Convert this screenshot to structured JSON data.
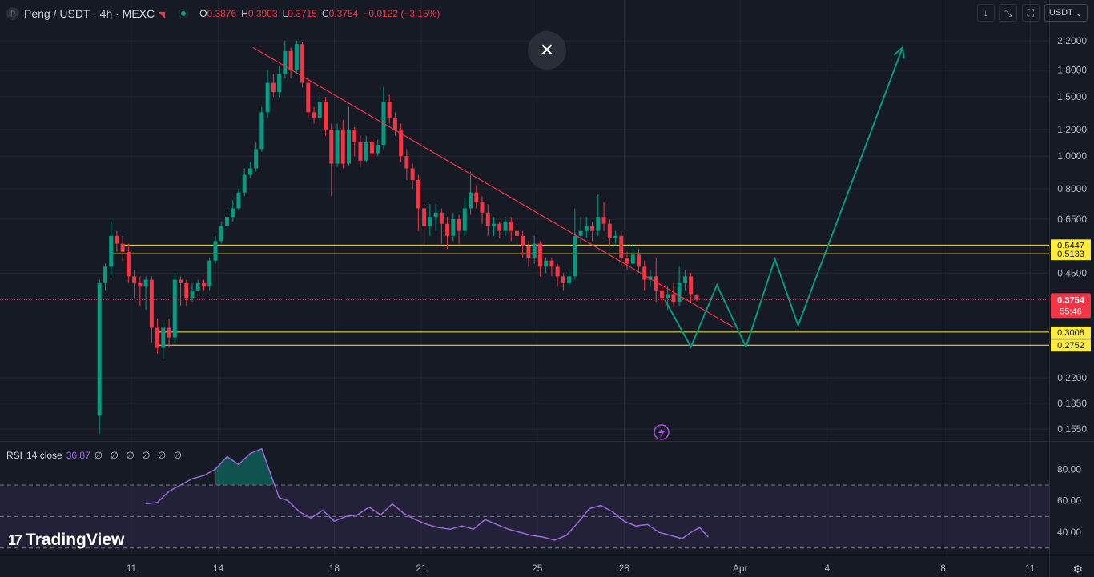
{
  "header": {
    "logo_letter": "P",
    "symbol": "Peng / USDT · 4h · MEXC",
    "ohlc": [
      {
        "k": "O",
        "v": "0.3876"
      },
      {
        "k": "H",
        "v": "0.3903"
      },
      {
        "k": "L",
        "v": "0.3715"
      },
      {
        "k": "C",
        "v": "0.3754"
      },
      {
        "k": "",
        "v": "−0.0122 (−3.15%)"
      }
    ]
  },
  "toolbar": {
    "close_symbol": "✕",
    "currency_label": "USDT"
  },
  "icons": {
    "close": "close-icon",
    "download": "arrow-down-icon",
    "collapse": "collapse-icon",
    "fullscreen": "fullscreen-icon",
    "settings": "gear-icon",
    "bolt": "lightning-icon"
  },
  "chart_data": {
    "type": "candlestick",
    "scale": "log",
    "y_tick_labels": [
      "2.2000",
      "1.8000",
      "1.5000",
      "1.2000",
      "1.0000",
      "0.8000",
      "0.6500",
      "0.4500",
      "0.2200",
      "0.1850",
      "0.1550"
    ],
    "x_tick_labels": [
      "11",
      "14",
      "18",
      "21",
      "25",
      "28",
      "Apr",
      "4",
      "8",
      "11"
    ],
    "last_price": {
      "value": "0.3754",
      "countdown": "55:46"
    },
    "horizontal_levels": [
      {
        "value": 0.5447,
        "label": "0.5447"
      },
      {
        "value": 0.5133,
        "label": "0.5133"
      },
      {
        "value": 0.3008,
        "label": "0.3008"
      },
      {
        "value": 0.2752,
        "label": "0.2752"
      }
    ],
    "trendline": {
      "from": {
        "t": 15.2,
        "p": 2.1
      },
      "to": {
        "t": 31.8,
        "p": 0.31
      }
    },
    "projection": [
      {
        "t": 29.4,
        "p": 0.375
      },
      {
        "t": 30.3,
        "p": 0.272
      },
      {
        "t": 31.2,
        "p": 0.415
      },
      {
        "t": 32.2,
        "p": 0.272
      },
      {
        "t": 33.2,
        "p": 0.495
      },
      {
        "t": 34.0,
        "p": 0.315
      },
      {
        "t": 37.6,
        "p": 2.1
      }
    ],
    "candles": [
      [
        9.9,
        0.17,
        0.42,
        0.15,
        0.43
      ],
      [
        10.1,
        0.42,
        0.47,
        0.4,
        0.48
      ],
      [
        10.3,
        0.47,
        0.58,
        0.44,
        0.64
      ],
      [
        10.5,
        0.58,
        0.55,
        0.52,
        0.6
      ],
      [
        10.7,
        0.55,
        0.52,
        0.49,
        0.58
      ],
      [
        10.9,
        0.52,
        0.44,
        0.42,
        0.55
      ],
      [
        11.1,
        0.44,
        0.42,
        0.38,
        0.46
      ],
      [
        11.3,
        0.42,
        0.41,
        0.36,
        0.44
      ],
      [
        11.5,
        0.41,
        0.43,
        0.35,
        0.44
      ],
      [
        11.7,
        0.43,
        0.31,
        0.28,
        0.44
      ],
      [
        11.9,
        0.31,
        0.27,
        0.26,
        0.33
      ],
      [
        12.1,
        0.27,
        0.31,
        0.25,
        0.32
      ],
      [
        12.3,
        0.31,
        0.29,
        0.27,
        0.33
      ],
      [
        12.5,
        0.29,
        0.43,
        0.28,
        0.45
      ],
      [
        12.7,
        0.43,
        0.42,
        0.36,
        0.44
      ],
      [
        12.9,
        0.42,
        0.38,
        0.36,
        0.43
      ],
      [
        13.1,
        0.38,
        0.4,
        0.37,
        0.42
      ],
      [
        13.3,
        0.4,
        0.42,
        0.4,
        0.43
      ],
      [
        13.5,
        0.42,
        0.41,
        0.4,
        0.43
      ],
      [
        13.7,
        0.41,
        0.49,
        0.4,
        0.5
      ],
      [
        13.9,
        0.49,
        0.56,
        0.48,
        0.58
      ],
      [
        14.1,
        0.56,
        0.62,
        0.55,
        0.64
      ],
      [
        14.3,
        0.62,
        0.66,
        0.61,
        0.69
      ],
      [
        14.5,
        0.66,
        0.7,
        0.64,
        0.74
      ],
      [
        14.7,
        0.7,
        0.78,
        0.69,
        0.8
      ],
      [
        14.9,
        0.78,
        0.88,
        0.76,
        0.92
      ],
      [
        15.1,
        0.88,
        0.92,
        0.86,
        0.96
      ],
      [
        15.3,
        0.92,
        1.05,
        0.9,
        1.1
      ],
      [
        15.5,
        1.05,
        1.35,
        1.03,
        1.4
      ],
      [
        15.7,
        1.35,
        1.65,
        1.3,
        1.8
      ],
      [
        15.9,
        1.65,
        1.55,
        1.5,
        1.75
      ],
      [
        16.1,
        1.55,
        1.75,
        1.5,
        1.85
      ],
      [
        16.3,
        1.75,
        2.05,
        1.7,
        2.2
      ],
      [
        16.5,
        2.05,
        1.8,
        1.7,
        2.1
      ],
      [
        16.7,
        1.8,
        2.15,
        1.75,
        2.2
      ],
      [
        16.9,
        2.15,
        1.65,
        1.6,
        2.18
      ],
      [
        17.1,
        1.65,
        1.35,
        1.3,
        1.7
      ],
      [
        17.3,
        1.35,
        1.3,
        1.25,
        1.4
      ],
      [
        17.5,
        1.3,
        1.45,
        1.28,
        1.52
      ],
      [
        17.7,
        1.45,
        1.2,
        1.15,
        1.5
      ],
      [
        17.9,
        1.2,
        0.95,
        0.76,
        1.25
      ],
      [
        18.1,
        0.95,
        1.2,
        0.93,
        1.25
      ],
      [
        18.3,
        1.2,
        0.95,
        0.92,
        1.28
      ],
      [
        18.5,
        0.95,
        1.2,
        0.94,
        1.4
      ],
      [
        18.7,
        1.2,
        1.1,
        1.0,
        1.22
      ],
      [
        18.9,
        1.1,
        0.97,
        0.93,
        1.15
      ],
      [
        19.1,
        0.97,
        1.1,
        0.96,
        1.15
      ],
      [
        19.3,
        1.1,
        1.02,
        0.98,
        1.12
      ],
      [
        19.5,
        1.02,
        1.08,
        1.0,
        1.12
      ],
      [
        19.7,
        1.08,
        1.45,
        1.05,
        1.6
      ],
      [
        19.9,
        1.45,
        1.3,
        1.25,
        1.52
      ],
      [
        20.1,
        1.3,
        1.2,
        1.15,
        1.35
      ],
      [
        20.3,
        1.2,
        1.0,
        0.96,
        1.25
      ],
      [
        20.5,
        1.0,
        0.92,
        0.85,
        1.05
      ],
      [
        20.7,
        0.92,
        0.85,
        0.8,
        0.95
      ],
      [
        20.9,
        0.85,
        0.7,
        0.6,
        0.88
      ],
      [
        21.1,
        0.7,
        0.62,
        0.55,
        0.72
      ],
      [
        21.3,
        0.62,
        0.66,
        0.58,
        0.72
      ],
      [
        21.5,
        0.66,
        0.68,
        0.6,
        0.72
      ],
      [
        21.7,
        0.68,
        0.63,
        0.55,
        0.7
      ],
      [
        21.9,
        0.63,
        0.58,
        0.53,
        0.66
      ],
      [
        22.1,
        0.58,
        0.65,
        0.56,
        0.68
      ],
      [
        22.3,
        0.65,
        0.6,
        0.55,
        0.67
      ],
      [
        22.5,
        0.6,
        0.7,
        0.58,
        0.75
      ],
      [
        22.7,
        0.7,
        0.78,
        0.67,
        0.9
      ],
      [
        22.9,
        0.78,
        0.73,
        0.7,
        0.82
      ],
      [
        23.1,
        0.73,
        0.68,
        0.63,
        0.76
      ],
      [
        23.3,
        0.68,
        0.62,
        0.58,
        0.72
      ],
      [
        23.5,
        0.62,
        0.63,
        0.58,
        0.66
      ],
      [
        23.7,
        0.63,
        0.6,
        0.57,
        0.64
      ],
      [
        23.9,
        0.6,
        0.64,
        0.58,
        0.66
      ],
      [
        24.1,
        0.64,
        0.6,
        0.56,
        0.66
      ],
      [
        24.3,
        0.6,
        0.58,
        0.55,
        0.62
      ],
      [
        24.5,
        0.58,
        0.54,
        0.5,
        0.6
      ],
      [
        24.7,
        0.54,
        0.5,
        0.47,
        0.56
      ],
      [
        24.9,
        0.5,
        0.55,
        0.48,
        0.58
      ],
      [
        25.1,
        0.55,
        0.47,
        0.44,
        0.56
      ],
      [
        25.3,
        0.47,
        0.49,
        0.45,
        0.5
      ],
      [
        25.5,
        0.49,
        0.47,
        0.44,
        0.5
      ],
      [
        25.7,
        0.47,
        0.44,
        0.41,
        0.48
      ],
      [
        25.9,
        0.44,
        0.42,
        0.4,
        0.45
      ],
      [
        26.1,
        0.42,
        0.44,
        0.41,
        0.46
      ],
      [
        26.3,
        0.44,
        0.58,
        0.43,
        0.7
      ],
      [
        26.5,
        0.58,
        0.6,
        0.55,
        0.66
      ],
      [
        26.7,
        0.6,
        0.62,
        0.57,
        0.66
      ],
      [
        26.9,
        0.62,
        0.6,
        0.56,
        0.64
      ],
      [
        27.1,
        0.6,
        0.66,
        0.58,
        0.77
      ],
      [
        27.3,
        0.66,
        0.63,
        0.6,
        0.73
      ],
      [
        27.5,
        0.63,
        0.57,
        0.54,
        0.65
      ],
      [
        27.7,
        0.57,
        0.58,
        0.55,
        0.6
      ],
      [
        27.9,
        0.58,
        0.5,
        0.47,
        0.6
      ],
      [
        28.1,
        0.5,
        0.48,
        0.46,
        0.52
      ],
      [
        28.3,
        0.48,
        0.51,
        0.47,
        0.55
      ],
      [
        28.5,
        0.51,
        0.47,
        0.45,
        0.53
      ],
      [
        28.7,
        0.47,
        0.43,
        0.4,
        0.49
      ],
      [
        28.9,
        0.43,
        0.44,
        0.41,
        0.46
      ],
      [
        29.1,
        0.44,
        0.4,
        0.37,
        0.5
      ],
      [
        29.3,
        0.4,
        0.38,
        0.36,
        0.42
      ],
      [
        29.5,
        0.38,
        0.39,
        0.35,
        0.41
      ],
      [
        29.7,
        0.39,
        0.37,
        0.36,
        0.42
      ],
      [
        29.9,
        0.37,
        0.42,
        0.36,
        0.47
      ],
      [
        30.1,
        0.42,
        0.44,
        0.4,
        0.46
      ],
      [
        30.3,
        0.44,
        0.39,
        0.37,
        0.45
      ],
      [
        30.5,
        0.3876,
        0.3754,
        0.3715,
        0.3903
      ]
    ],
    "rsi": {
      "label": "RSI",
      "params": "14 close",
      "value": "36.87",
      "extra": "∅ ∅ ∅ ∅ ∅ ∅",
      "y_tick_labels": [
        "80.00",
        "60.00",
        "40.00"
      ],
      "upper": 70,
      "lower": 30,
      "series": [
        [
          11.5,
          58
        ],
        [
          11.9,
          59
        ],
        [
          12.3,
          66
        ],
        [
          12.7,
          70
        ],
        [
          13.1,
          74
        ],
        [
          13.5,
          76
        ],
        [
          13.9,
          80
        ],
        [
          14.3,
          88
        ],
        [
          14.7,
          83
        ],
        [
          15.1,
          90
        ],
        [
          15.5,
          93
        ],
        [
          15.9,
          72
        ],
        [
          16.1,
          62
        ],
        [
          16.4,
          60
        ],
        [
          16.8,
          53
        ],
        [
          17.2,
          49
        ],
        [
          17.6,
          54
        ],
        [
          18.0,
          47
        ],
        [
          18.4,
          50
        ],
        [
          18.8,
          51
        ],
        [
          19.2,
          56
        ],
        [
          19.6,
          51
        ],
        [
          20.0,
          58
        ],
        [
          20.4,
          52
        ],
        [
          20.8,
          48
        ],
        [
          21.2,
          45
        ],
        [
          21.6,
          43
        ],
        [
          22.0,
          42
        ],
        [
          22.4,
          44
        ],
        [
          22.8,
          42
        ],
        [
          23.2,
          48
        ],
        [
          23.6,
          45
        ],
        [
          24.0,
          42
        ],
        [
          24.4,
          40
        ],
        [
          24.8,
          38
        ],
        [
          25.2,
          37
        ],
        [
          25.6,
          35
        ],
        [
          26.0,
          38
        ],
        [
          26.4,
          46
        ],
        [
          26.8,
          55
        ],
        [
          27.2,
          57
        ],
        [
          27.6,
          53
        ],
        [
          28.0,
          47
        ],
        [
          28.4,
          44
        ],
        [
          28.8,
          45
        ],
        [
          29.2,
          40
        ],
        [
          29.6,
          38
        ],
        [
          30.0,
          36
        ],
        [
          30.3,
          40
        ],
        [
          30.6,
          43
        ],
        [
          30.9,
          37
        ]
      ]
    }
  }
}
